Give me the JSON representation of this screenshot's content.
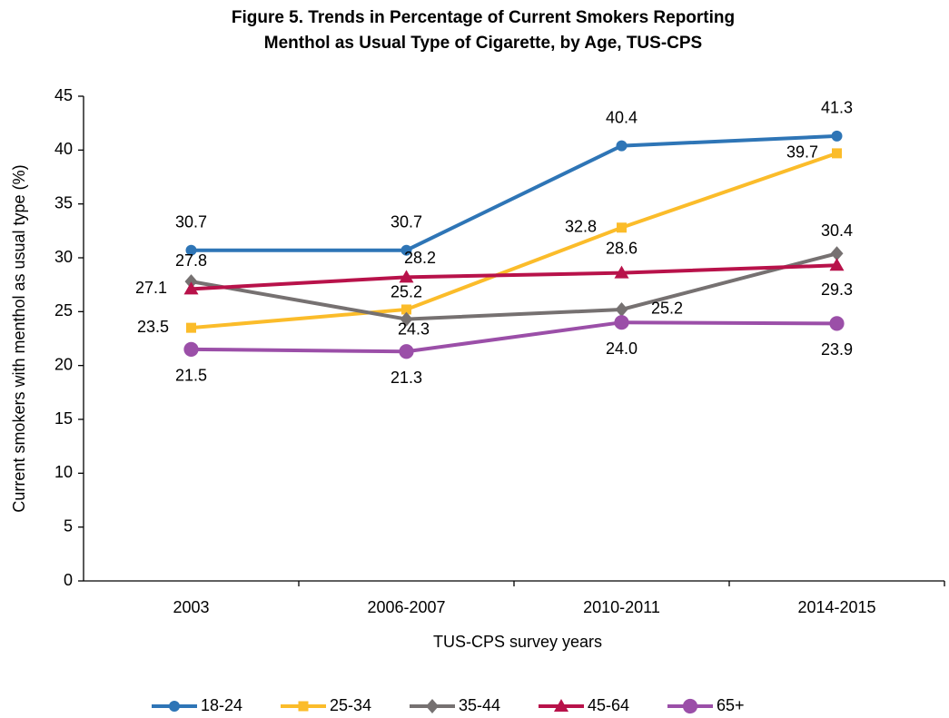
{
  "chart_data": {
    "type": "line",
    "title": [
      "Figure 5. Trends in Percentage of Current Smokers Reporting",
      "Menthol as Usual Type of Cigarette, by Age, TUS-CPS"
    ],
    "xlabel": "TUS-CPS survey years",
    "ylabel": "Current smokers with menthol as usual type (%)",
    "categories": [
      "2003",
      "2006-2007",
      "2010-2011",
      "2014-2015"
    ],
    "ylim": [
      0,
      45
    ],
    "yticks": [
      0,
      5,
      10,
      15,
      20,
      25,
      30,
      35,
      40,
      45
    ],
    "legend": "bottom",
    "series": [
      {
        "name": "18-24",
        "color": "#2e75b6",
        "marker": "circle",
        "values": [
          30.7,
          30.7,
          40.4,
          41.3
        ]
      },
      {
        "name": "25-34",
        "color": "#fbbc2a",
        "marker": "square",
        "values": [
          23.5,
          25.2,
          32.8,
          39.7
        ]
      },
      {
        "name": "35-44",
        "color": "#767171",
        "marker": "diamond",
        "values": [
          27.8,
          24.3,
          25.2,
          30.4
        ]
      },
      {
        "name": "45-64",
        "color": "#b8124a",
        "marker": "triangle",
        "values": [
          27.1,
          28.2,
          28.6,
          29.3
        ]
      },
      {
        "name": "65+",
        "color": "#9b4fa8",
        "marker": "circle",
        "values": [
          21.5,
          21.3,
          24.0,
          23.9
        ],
        "value_labels": [
          "21.5",
          "21.3",
          "24.0",
          "23.9"
        ]
      }
    ]
  }
}
